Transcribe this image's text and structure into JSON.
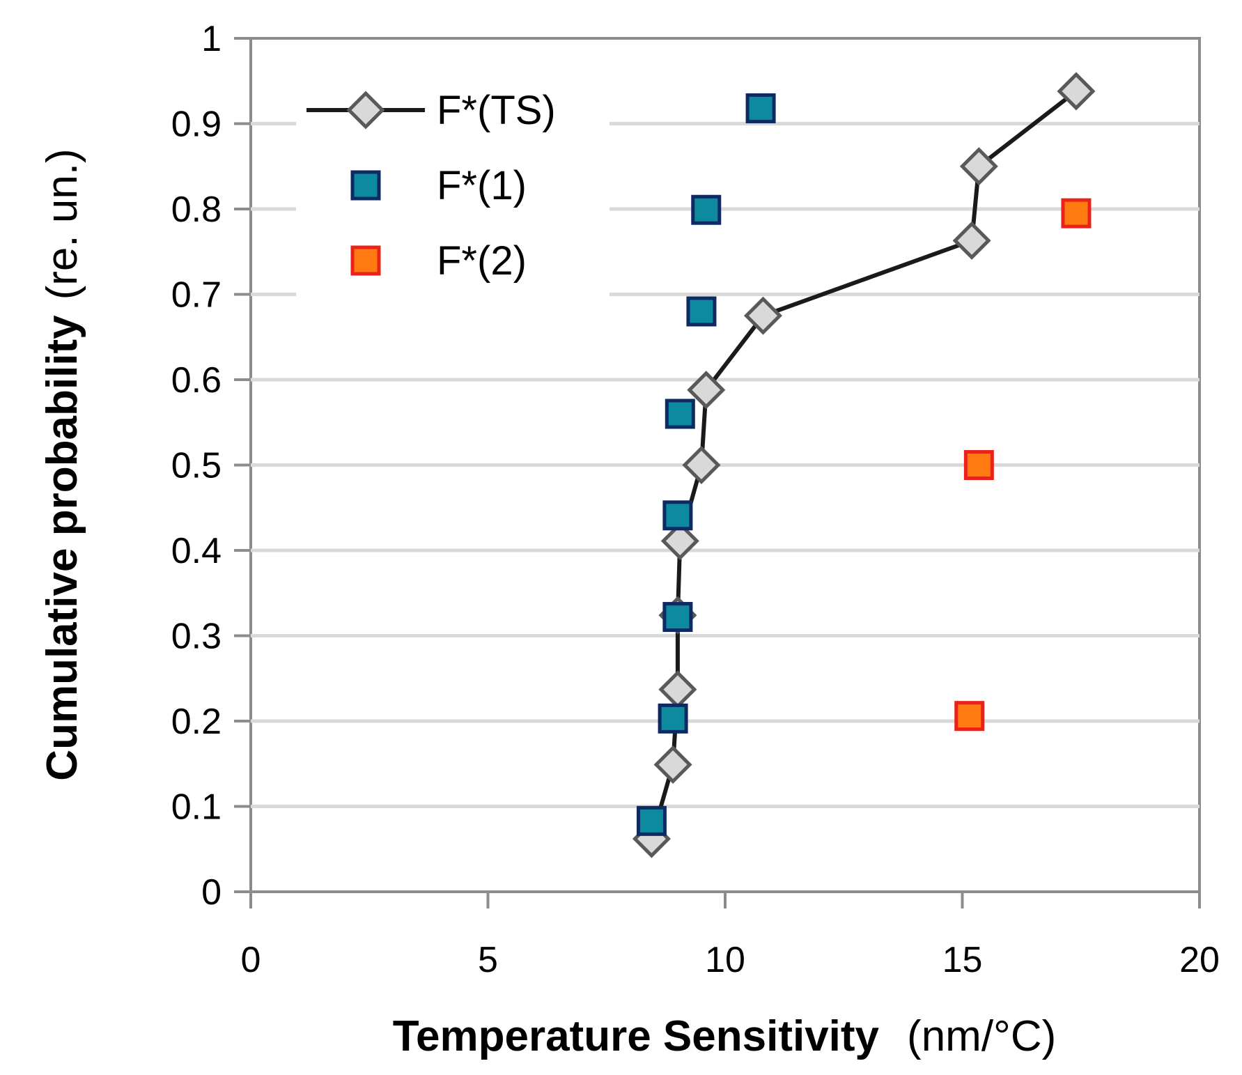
{
  "chart_data": {
    "type": "scatter",
    "title": "",
    "xlabel": {
      "bold": "Temperature Sensitivity",
      "unit": "(nm/°C)"
    },
    "ylabel": {
      "bold": "Cumulative probability",
      "unit": "(re. un.)"
    },
    "xlim": [
      0,
      20
    ],
    "ylim": [
      0,
      1
    ],
    "x_ticks": [
      0,
      5,
      10,
      15,
      20
    ],
    "y_ticks": [
      0,
      0.1,
      0.2,
      0.3,
      0.4,
      0.5,
      0.6,
      0.7,
      0.8,
      0.9,
      1
    ],
    "x_tick_labels": [
      "0",
      "5",
      "10",
      "15",
      "20"
    ],
    "y_tick_labels": [
      "0",
      "0.1",
      "0.2",
      "0.3",
      "0.4",
      "0.5",
      "0.6",
      "0.7",
      "0.8",
      "0.9",
      "1"
    ],
    "grid": "horizontal",
    "legend_position": "top-left",
    "series": [
      {
        "name": "F*(TS)",
        "style": "line-diamond",
        "line_color": "#1a1a1a",
        "marker_fill": "#d9d9d9",
        "marker_edge": "#595959",
        "points": [
          [
            8.45,
            0.062
          ],
          [
            8.9,
            0.149
          ],
          [
            9.0,
            0.237
          ],
          [
            9.0,
            0.324
          ],
          [
            9.05,
            0.411
          ],
          [
            9.5,
            0.5
          ],
          [
            9.6,
            0.588
          ],
          [
            10.8,
            0.675
          ],
          [
            15.2,
            0.763
          ],
          [
            15.35,
            0.85
          ],
          [
            17.4,
            0.938
          ]
        ]
      },
      {
        "name": "F*(1)",
        "style": "square",
        "marker_fill": "#0e8a9e",
        "marker_edge": "#0d2a63",
        "points": [
          [
            8.45,
            0.083
          ],
          [
            8.9,
            0.203
          ],
          [
            9.0,
            0.322
          ],
          [
            9.0,
            0.441
          ],
          [
            9.05,
            0.56
          ],
          [
            9.5,
            0.68
          ],
          [
            9.6,
            0.799
          ],
          [
            10.75,
            0.918
          ]
        ]
      },
      {
        "name": "F*(2)",
        "style": "square",
        "marker_fill": "#ff7a10",
        "marker_edge": "#e8231a",
        "points": [
          [
            15.15,
            0.206
          ],
          [
            15.35,
            0.5
          ],
          [
            17.4,
            0.795
          ]
        ]
      }
    ]
  }
}
